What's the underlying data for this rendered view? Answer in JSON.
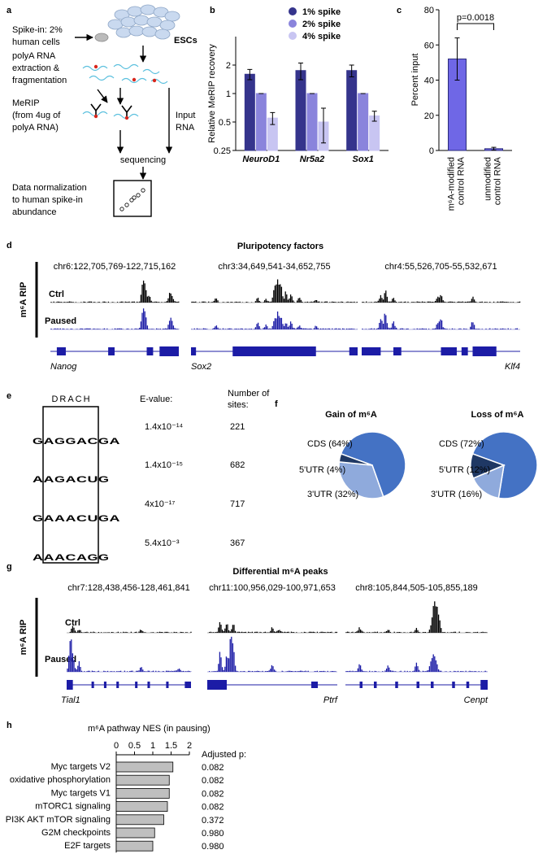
{
  "panel_labels": [
    "a",
    "b",
    "c",
    "d",
    "e",
    "f",
    "g",
    "h"
  ],
  "schematic": {
    "spike_in": [
      "Spike-in: 2%",
      "human cells"
    ],
    "cells": "ESCs",
    "extraction": [
      "polyA RNA",
      "extraction &",
      "fragmentation"
    ],
    "merip": [
      "MeRIP",
      "(from 4ug of",
      "polyA RNA)"
    ],
    "input": [
      "Input",
      "RNA"
    ],
    "sequencing": "sequencing",
    "normalization": [
      "Data normalization",
      "to human spike-in",
      "abundance"
    ]
  },
  "chart_data": [
    {
      "type": "bar",
      "y_label": "Relative MeRIP recovery",
      "categories": [
        "NeuroD1",
        "Nr5a2",
        "Sox1"
      ],
      "series": [
        {
          "name": "1% spike",
          "color": "#35348c",
          "values": [
            1.6,
            1.75,
            1.75
          ],
          "errors": [
            0.2,
            0.35,
            0.25
          ]
        },
        {
          "name": "2% spike",
          "color": "#8a84dc",
          "values": [
            1,
            1,
            1
          ],
          "errors": [
            0,
            0,
            0
          ]
        },
        {
          "name": "4% spike",
          "color": "#c8c5f2",
          "values": [
            0.55,
            0.5,
            0.58
          ],
          "errors": [
            0.08,
            0.2,
            0.07
          ]
        }
      ],
      "ylim": [
        0.25,
        4
      ],
      "yticks": [
        0.25,
        0.5,
        1,
        2
      ],
      "log_scale": true,
      "legend": "upper right"
    },
    {
      "type": "bar",
      "y_label": "Percent input",
      "categories": [
        [
          "m⁶A-modified",
          "control RNA"
        ],
        [
          "unmodified",
          "control RNA"
        ]
      ],
      "values": [
        52,
        1
      ],
      "errors": [
        12,
        0.8
      ],
      "color": "#6f67e6",
      "ylim": [
        0,
        80
      ],
      "yticks": [
        0,
        20,
        40,
        60,
        80
      ],
      "annotation": "p=0.0018"
    },
    {
      "type": "pie",
      "title": "Gain of m⁶A",
      "values": [
        64,
        4,
        32
      ],
      "value_labels": [
        "CDS (64%)",
        "5'UTR (4%)",
        "3'UTR (32%)"
      ],
      "colors": [
        "#4472c4",
        "#1f3864",
        "#8faadc"
      ]
    },
    {
      "type": "pie",
      "title": "Loss of m⁶A",
      "values": [
        72,
        12,
        16
      ],
      "value_labels": [
        "CDS (72%)",
        "5'UTR (12%)",
        "3'UTR (16%)"
      ],
      "colors": [
        "#4472c4",
        "#1f3864",
        "#8faadc"
      ]
    },
    {
      "type": "hbar",
      "title": "m⁶A  pathway NES (in pausing)",
      "categories": [
        "Myc targets V2",
        "oxidative phosphorylation",
        "Myc targets V1",
        "mTORC1 signaling",
        "PI3K AKT mTOR signaling",
        "G2M checkpoints",
        "E2F targets"
      ],
      "values": [
        1.55,
        1.45,
        1.45,
        1.4,
        1.3,
        1.05,
        1.0
      ],
      "color": "#bfbfbf",
      "xlim": [
        0,
        2
      ],
      "xticks": [
        0,
        0.5,
        1,
        1.5,
        2
      ],
      "p_header": "Adjusted p:",
      "adjusted_p": [
        "0.082",
        "0.082",
        "0.082",
        "0.082",
        "0.372",
        "0.980",
        "0.980"
      ]
    }
  ],
  "tracks": [
    {
      "title": "Pluripotency factors",
      "side_label": "m⁶A RIP",
      "track_labels": [
        "Ctrl",
        "Paused"
      ],
      "regions": [
        "chr6:122,705,769-122,715,162",
        "chr3:34,649,541-34,652,755",
        "chr4:55,526,705-55,532,671"
      ],
      "genes": [
        "Nanog",
        "Sox2",
        "Klf4"
      ]
    },
    {
      "title": "Differential m⁶A peaks",
      "side_label": "m⁶A RIP",
      "track_labels": [
        "Ctrl",
        "Paused"
      ],
      "regions": [
        "chr7:128,438,456-128,461,841",
        "chr11:100,956,029-100,971,653",
        "chr8:105,844,505-105,855,189"
      ],
      "genes": [
        "Tial1",
        "Ptrf",
        "Cenpt"
      ]
    }
  ],
  "motifs": {
    "title": "DRACH",
    "e_value_header": "E-value:",
    "sites_header": [
      "Number of",
      "sites:"
    ],
    "rows": [
      {
        "letters": [
          "G",
          "A",
          "G",
          "G",
          "A",
          "C",
          "G",
          "A"
        ],
        "e_value": "1.4x10⁻¹⁴",
        "sites": 221
      },
      {
        "letters": [
          "A",
          "A",
          "G",
          "A",
          "C",
          "U",
          "G"
        ],
        "e_value": "1.4x10⁻¹⁵",
        "sites": 682
      },
      {
        "letters": [
          "G",
          "A",
          "A",
          "A",
          "C",
          "U",
          "G",
          "A"
        ],
        "e_value": "4x10⁻¹⁷",
        "sites": 717
      },
      {
        "letters": [
          "A",
          "A",
          "A",
          "C",
          "A",
          "G",
          "G"
        ],
        "e_value": "5.4x10⁻³",
        "sites": 367
      }
    ]
  }
}
